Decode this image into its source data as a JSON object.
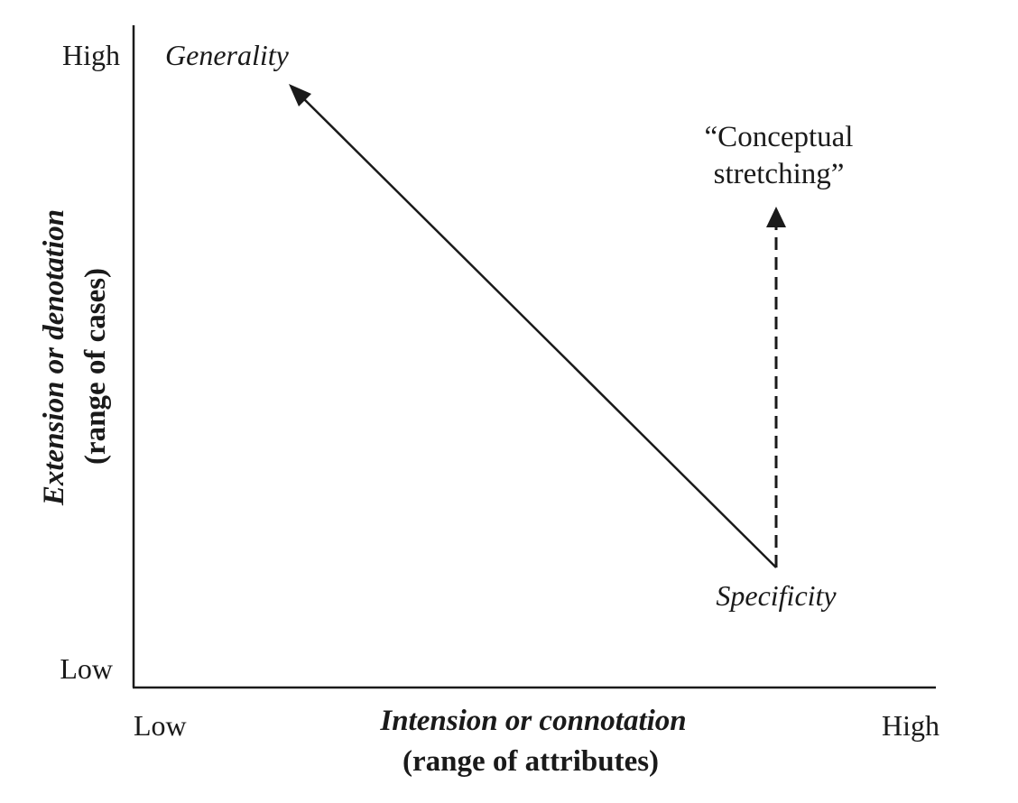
{
  "colors": {
    "ink": "#1a1a1a",
    "background": "#ffffff"
  },
  "y_axis": {
    "title": "Extension or denotation",
    "subtitle": "(range of cases)",
    "high_label": "High",
    "low_label": "Low"
  },
  "x_axis": {
    "title": "Intension or connotation",
    "subtitle": "(range of attributes)",
    "low_label": "Low",
    "high_label": "High"
  },
  "points": {
    "generality_label": "Generality",
    "specificity_label": "Specificity"
  },
  "stretching_note": {
    "line1": "“Conceptual",
    "line2": "stretching”"
  }
}
